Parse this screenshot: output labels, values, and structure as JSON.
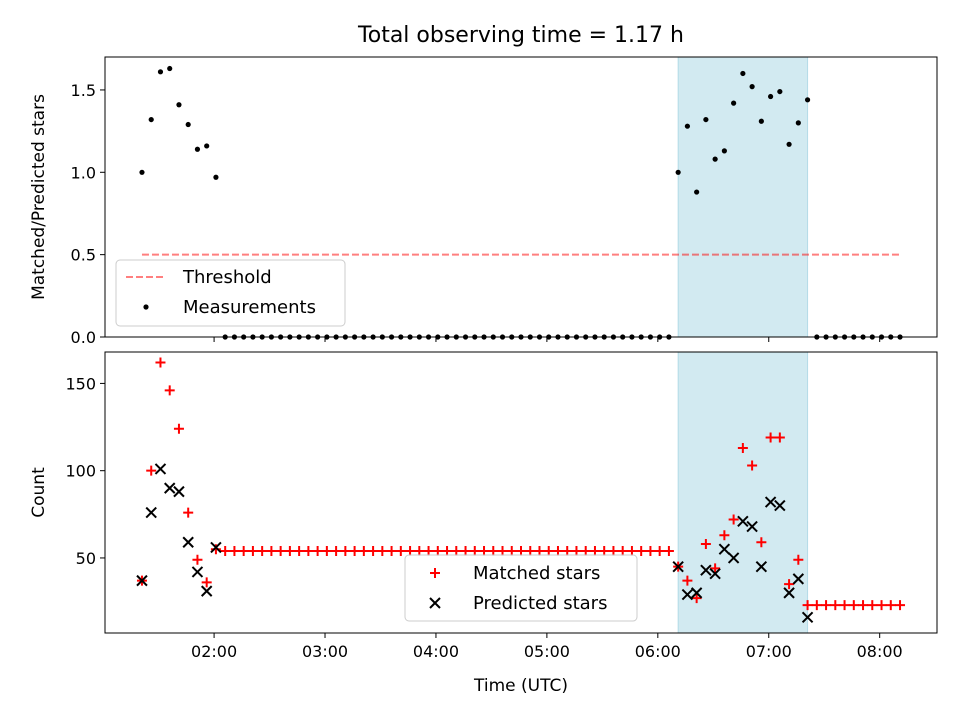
{
  "chart_data": [
    {
      "type": "scatter",
      "title": "Total observing time = 1.17 h",
      "xlabel": "",
      "ylabel": "Matched/Predicted stars",
      "ylim": [
        0,
        1.7
      ],
      "yticks": [
        "0.0",
        "0.5",
        "1.0",
        "1.5"
      ],
      "xlim": [
        "01:01",
        "08:31"
      ],
      "highlight": {
        "from": "06:11",
        "to": "07:21",
        "color": "#add8e6"
      },
      "threshold": {
        "name": "Threshold",
        "y": 0.5,
        "from": "01:21",
        "to": "08:11",
        "color": "#ff0000"
      },
      "legend": {
        "position": "lower-left",
        "entries": [
          "Threshold",
          "Measurements"
        ]
      },
      "series": [
        {
          "name": "Measurements",
          "marker": "dot",
          "color": "#000000",
          "points": [
            [
              "01:21",
              1.0
            ],
            [
              "01:26",
              1.32
            ],
            [
              "01:31",
              1.61
            ],
            [
              "01:36",
              1.63
            ],
            [
              "01:41",
              1.41
            ],
            [
              "01:46",
              1.29
            ],
            [
              "01:51",
              1.14
            ],
            [
              "01:56",
              1.16
            ],
            [
              "02:01",
              0.97
            ],
            [
              "02:06",
              0
            ],
            [
              "02:11",
              0
            ],
            [
              "02:16",
              0
            ],
            [
              "02:21",
              0
            ],
            [
              "02:26",
              0
            ],
            [
              "02:31",
              0
            ],
            [
              "02:36",
              0
            ],
            [
              "02:41",
              0
            ],
            [
              "02:46",
              0
            ],
            [
              "02:51",
              0
            ],
            [
              "02:56",
              0
            ],
            [
              "03:01",
              0
            ],
            [
              "03:06",
              0
            ],
            [
              "03:11",
              0
            ],
            [
              "03:16",
              0
            ],
            [
              "03:21",
              0
            ],
            [
              "03:26",
              0
            ],
            [
              "03:31",
              0
            ],
            [
              "03:36",
              0
            ],
            [
              "03:41",
              0
            ],
            [
              "03:46",
              0
            ],
            [
              "03:51",
              0
            ],
            [
              "03:56",
              0
            ],
            [
              "04:01",
              0
            ],
            [
              "04:06",
              0
            ],
            [
              "04:11",
              0
            ],
            [
              "04:16",
              0
            ],
            [
              "04:21",
              0
            ],
            [
              "04:26",
              0
            ],
            [
              "04:31",
              0
            ],
            [
              "04:36",
              0
            ],
            [
              "04:41",
              0
            ],
            [
              "04:46",
              0
            ],
            [
              "04:51",
              0
            ],
            [
              "04:56",
              0
            ],
            [
              "05:01",
              0
            ],
            [
              "05:06",
              0
            ],
            [
              "05:11",
              0
            ],
            [
              "05:16",
              0
            ],
            [
              "05:21",
              0
            ],
            [
              "05:26",
              0
            ],
            [
              "05:31",
              0
            ],
            [
              "05:36",
              0
            ],
            [
              "05:41",
              0
            ],
            [
              "05:46",
              0
            ],
            [
              "05:51",
              0
            ],
            [
              "05:56",
              0
            ],
            [
              "06:01",
              0
            ],
            [
              "06:06",
              0
            ],
            [
              "06:11",
              1.0
            ],
            [
              "06:16",
              1.28
            ],
            [
              "06:21",
              0.88
            ],
            [
              "06:26",
              1.32
            ],
            [
              "06:31",
              1.08
            ],
            [
              "06:36",
              1.13
            ],
            [
              "06:41",
              1.42
            ],
            [
              "06:46",
              1.6
            ],
            [
              "06:51",
              1.52
            ],
            [
              "06:56",
              1.31
            ],
            [
              "07:01",
              1.46
            ],
            [
              "07:06",
              1.49
            ],
            [
              "07:11",
              1.17
            ],
            [
              "07:16",
              1.3
            ],
            [
              "07:21",
              1.44
            ],
            [
              "07:26",
              0
            ],
            [
              "07:31",
              0
            ],
            [
              "07:36",
              0
            ],
            [
              "07:41",
              0
            ],
            [
              "07:46",
              0
            ],
            [
              "07:51",
              0
            ],
            [
              "07:56",
              0
            ],
            [
              "08:01",
              0
            ],
            [
              "08:06",
              0
            ],
            [
              "08:11",
              0
            ]
          ]
        }
      ]
    },
    {
      "type": "scatter",
      "title": "",
      "xlabel": "Time (UTC)",
      "ylabel": "Count",
      "ylim": [
        7,
        168
      ],
      "yticks": [
        "50",
        "100",
        "150"
      ],
      "xlim": [
        "01:01",
        "08:31"
      ],
      "xticks": [
        "02:00",
        "03:00",
        "04:00",
        "05:00",
        "06:00",
        "07:00",
        "08:00"
      ],
      "highlight": {
        "from": "06:11",
        "to": "07:21",
        "color": "#add8e6"
      },
      "legend": {
        "position": "lower-center",
        "entries": [
          "Matched stars",
          "Predicted stars"
        ]
      },
      "series": [
        {
          "name": "Matched stars",
          "marker": "plus",
          "color": "#ff0000",
          "points": [
            [
              "01:21",
              37
            ],
            [
              "01:26",
              100
            ],
            [
              "01:31",
              162
            ],
            [
              "01:36",
              146
            ],
            [
              "01:41",
              124
            ],
            [
              "01:46",
              76
            ],
            [
              "01:51",
              49
            ],
            [
              "01:56",
              36
            ],
            [
              "02:01",
              55
            ],
            [
              "02:06",
              54
            ],
            [
              "02:11",
              54
            ],
            [
              "02:16",
              54
            ],
            [
              "02:21",
              54
            ],
            [
              "02:26",
              54
            ],
            [
              "02:31",
              54
            ],
            [
              "02:36",
              54
            ],
            [
              "02:41",
              54
            ],
            [
              "02:46",
              54
            ],
            [
              "02:51",
              54
            ],
            [
              "02:56",
              54
            ],
            [
              "03:01",
              54
            ],
            [
              "03:06",
              54
            ],
            [
              "03:11",
              54
            ],
            [
              "03:16",
              54
            ],
            [
              "03:21",
              54
            ],
            [
              "03:26",
              54
            ],
            [
              "03:31",
              54
            ],
            [
              "03:36",
              54
            ],
            [
              "03:41",
              54
            ],
            [
              "03:46",
              54
            ],
            [
              "03:51",
              54
            ],
            [
              "03:56",
              54
            ],
            [
              "04:01",
              54
            ],
            [
              "04:06",
              54
            ],
            [
              "04:11",
              54
            ],
            [
              "04:16",
              54
            ],
            [
              "04:21",
              54
            ],
            [
              "04:26",
              54
            ],
            [
              "04:31",
              54
            ],
            [
              "04:36",
              54
            ],
            [
              "04:41",
              54
            ],
            [
              "04:46",
              54
            ],
            [
              "04:51",
              54
            ],
            [
              "04:56",
              54
            ],
            [
              "05:01",
              54
            ],
            [
              "05:06",
              54
            ],
            [
              "05:11",
              54
            ],
            [
              "05:16",
              54
            ],
            [
              "05:21",
              54
            ],
            [
              "05:26",
              54
            ],
            [
              "05:31",
              54
            ],
            [
              "05:36",
              54
            ],
            [
              "05:41",
              54
            ],
            [
              "05:46",
              54
            ],
            [
              "05:51",
              54
            ],
            [
              "05:56",
              54
            ],
            [
              "06:01",
              54
            ],
            [
              "06:06",
              54
            ],
            [
              "06:11",
              45
            ],
            [
              "06:16",
              37
            ],
            [
              "06:21",
              27
            ],
            [
              "06:26",
              58
            ],
            [
              "06:31",
              44
            ],
            [
              "06:36",
              63
            ],
            [
              "06:41",
              72
            ],
            [
              "06:46",
              113
            ],
            [
              "06:51",
              103
            ],
            [
              "06:56",
              59
            ],
            [
              "07:01",
              119
            ],
            [
              "07:06",
              119
            ],
            [
              "07:11",
              35
            ],
            [
              "07:16",
              49
            ],
            [
              "07:21",
              23
            ],
            [
              "07:26",
              23
            ],
            [
              "07:31",
              23
            ],
            [
              "07:36",
              23
            ],
            [
              "07:41",
              23
            ],
            [
              "07:46",
              23
            ],
            [
              "07:51",
              23
            ],
            [
              "07:56",
              23
            ],
            [
              "08:01",
              23
            ],
            [
              "08:06",
              23
            ],
            [
              "08:11",
              23
            ]
          ]
        },
        {
          "name": "Predicted stars",
          "marker": "x",
          "color": "#000000",
          "points": [
            [
              "01:21",
              37
            ],
            [
              "01:26",
              76
            ],
            [
              "01:31",
              101
            ],
            [
              "01:36",
              90
            ],
            [
              "01:41",
              88
            ],
            [
              "01:46",
              59
            ],
            [
              "01:51",
              42
            ],
            [
              "01:56",
              31
            ],
            [
              "02:01",
              56
            ],
            [
              "06:11",
              45
            ],
            [
              "06:16",
              29
            ],
            [
              "06:21",
              30
            ],
            [
              "06:26",
              43
            ],
            [
              "06:31",
              41
            ],
            [
              "06:36",
              55
            ],
            [
              "06:41",
              50
            ],
            [
              "06:46",
              71
            ],
            [
              "06:51",
              68
            ],
            [
              "06:56",
              45
            ],
            [
              "07:01",
              82
            ],
            [
              "07:06",
              80
            ],
            [
              "07:11",
              30
            ],
            [
              "07:16",
              38
            ],
            [
              "07:21",
              16
            ]
          ]
        }
      ]
    }
  ]
}
